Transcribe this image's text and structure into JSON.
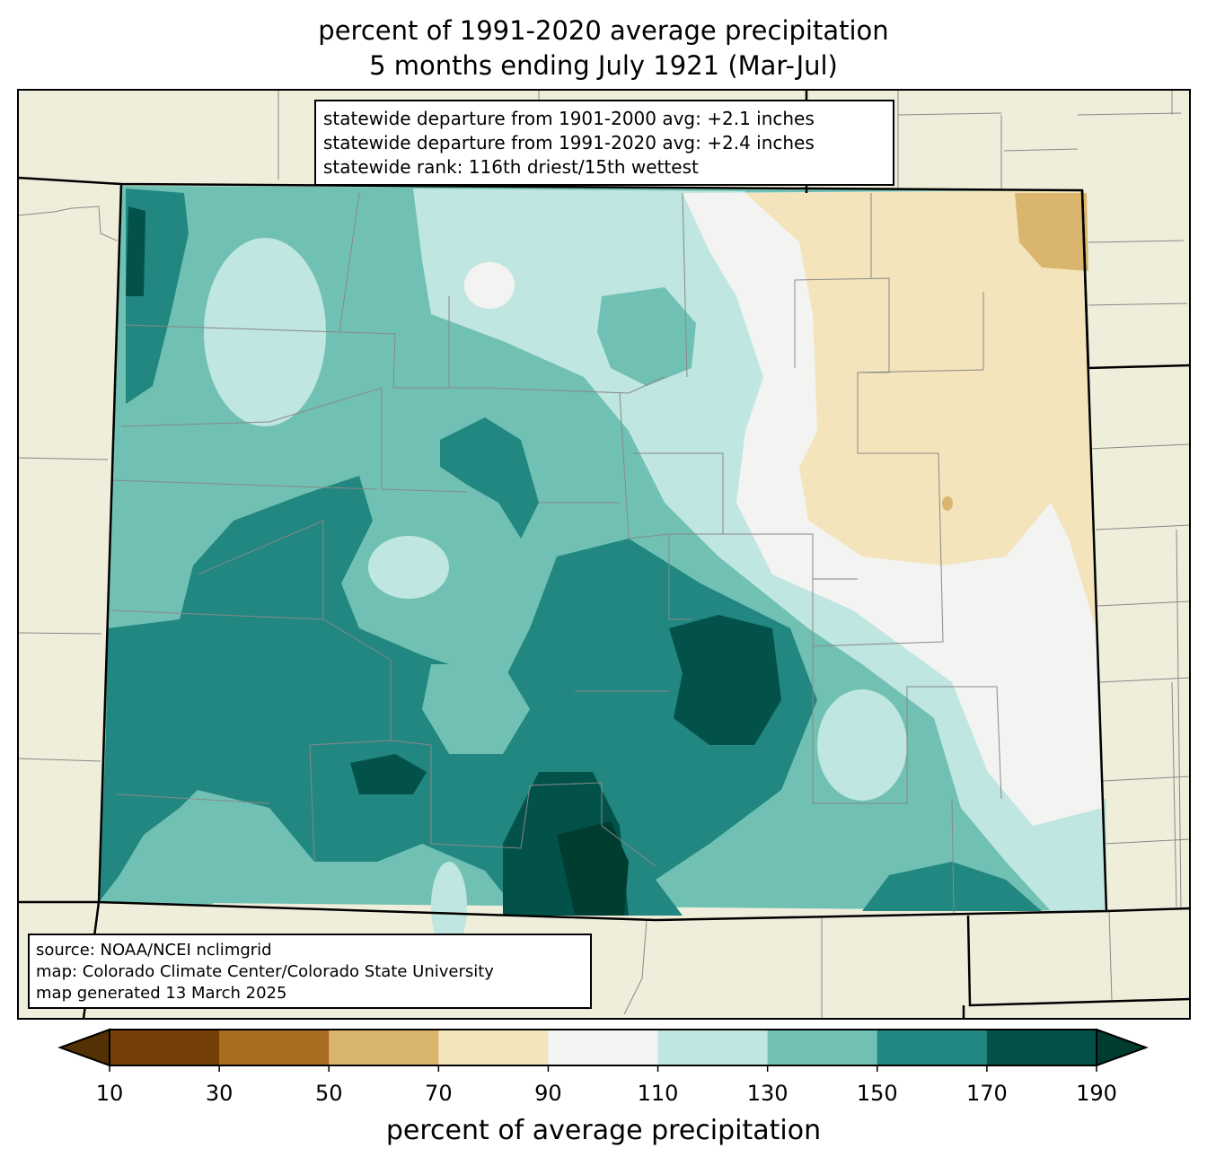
{
  "title": {
    "line1": "percent of 1991-2020 average precipitation",
    "line2": "5 months ending July 1921 (Mar-Jul)"
  },
  "info_box": {
    "lines": [
      "statewide departure from 1901-2000 avg: +2.1 inches",
      "statewide departure from 1991-2020 avg: +2.4 inches",
      "statewide rank: 116th driest/15th wettest"
    ]
  },
  "source_box": {
    "lines": [
      "source: NOAA/NCEI nclimgrid",
      "map: Colorado Climate Center/Colorado State University",
      "map generated 13 March 2025"
    ]
  },
  "colorbar": {
    "label": "percent of average precipitation",
    "ticks": [
      "10",
      "30",
      "50",
      "70",
      "90",
      "110",
      "130",
      "150",
      "170",
      "190"
    ],
    "colors": [
      "#744008",
      "#ab6d21",
      "#dab56d",
      "#f3e4bc",
      "#f3f4f2",
      "#bfe6e0",
      "#70c1b3",
      "#218780",
      "#02524a"
    ],
    "under_color": "#543005",
    "over_color": "#003c30"
  },
  "colors": {
    "land": "#efeedb"
  }
}
